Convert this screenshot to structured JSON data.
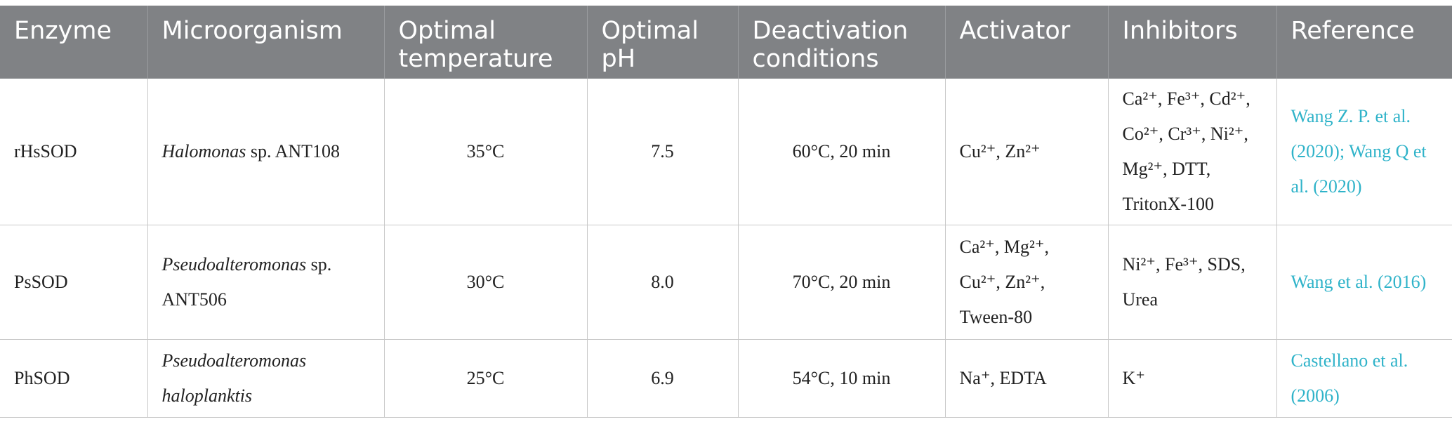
{
  "headers": {
    "enzyme": "Enzyme",
    "microorganism": "Microorganism",
    "optimal_temperature": "Optimal temperature",
    "optimal_ph": "Optimal pH",
    "deactivation": "Deactivation conditions",
    "activator": "Activator",
    "inhibitors": "Inhibitors",
    "reference": "Reference"
  },
  "rows": [
    {
      "enzyme": "rHsSOD",
      "organism_genus": "Halomonas",
      "organism_rest": " sp. ANT108",
      "temperature": "35°C",
      "ph": "7.5",
      "deactivation": "60°C, 20 min",
      "activator": "Cu²⁺, Zn²⁺",
      "inhibitors": "Ca²⁺, Fe³⁺, Cd²⁺, Co²⁺, Cr³⁺, Ni²⁺, Mg²⁺, DTT, TritonX-100",
      "reference": "Wang Z. P. et al. (2020); Wang Q et al. (2020)"
    },
    {
      "enzyme": "PsSOD",
      "organism_genus": "Pseudoalteromonas",
      "organism_rest": " sp. ANT506",
      "temperature": "30°C",
      "ph": "8.0",
      "deactivation": "70°C, 20 min",
      "activator": "Ca²⁺, Mg²⁺, Cu²⁺, Zn²⁺, Tween-80",
      "inhibitors": "Ni²⁺, Fe³⁺, SDS, Urea",
      "reference": "Wang et al. (2016)"
    },
    {
      "enzyme": "PhSOD",
      "organism_genus": "Pseudoalteromonas haloplanktis",
      "organism_rest": "",
      "temperature": "25°C",
      "ph": "6.9",
      "deactivation": "54°C, 10 min",
      "activator": "Na⁺, EDTA",
      "inhibitors": "K⁺",
      "reference": "Castellano et al. (2006)"
    }
  ]
}
